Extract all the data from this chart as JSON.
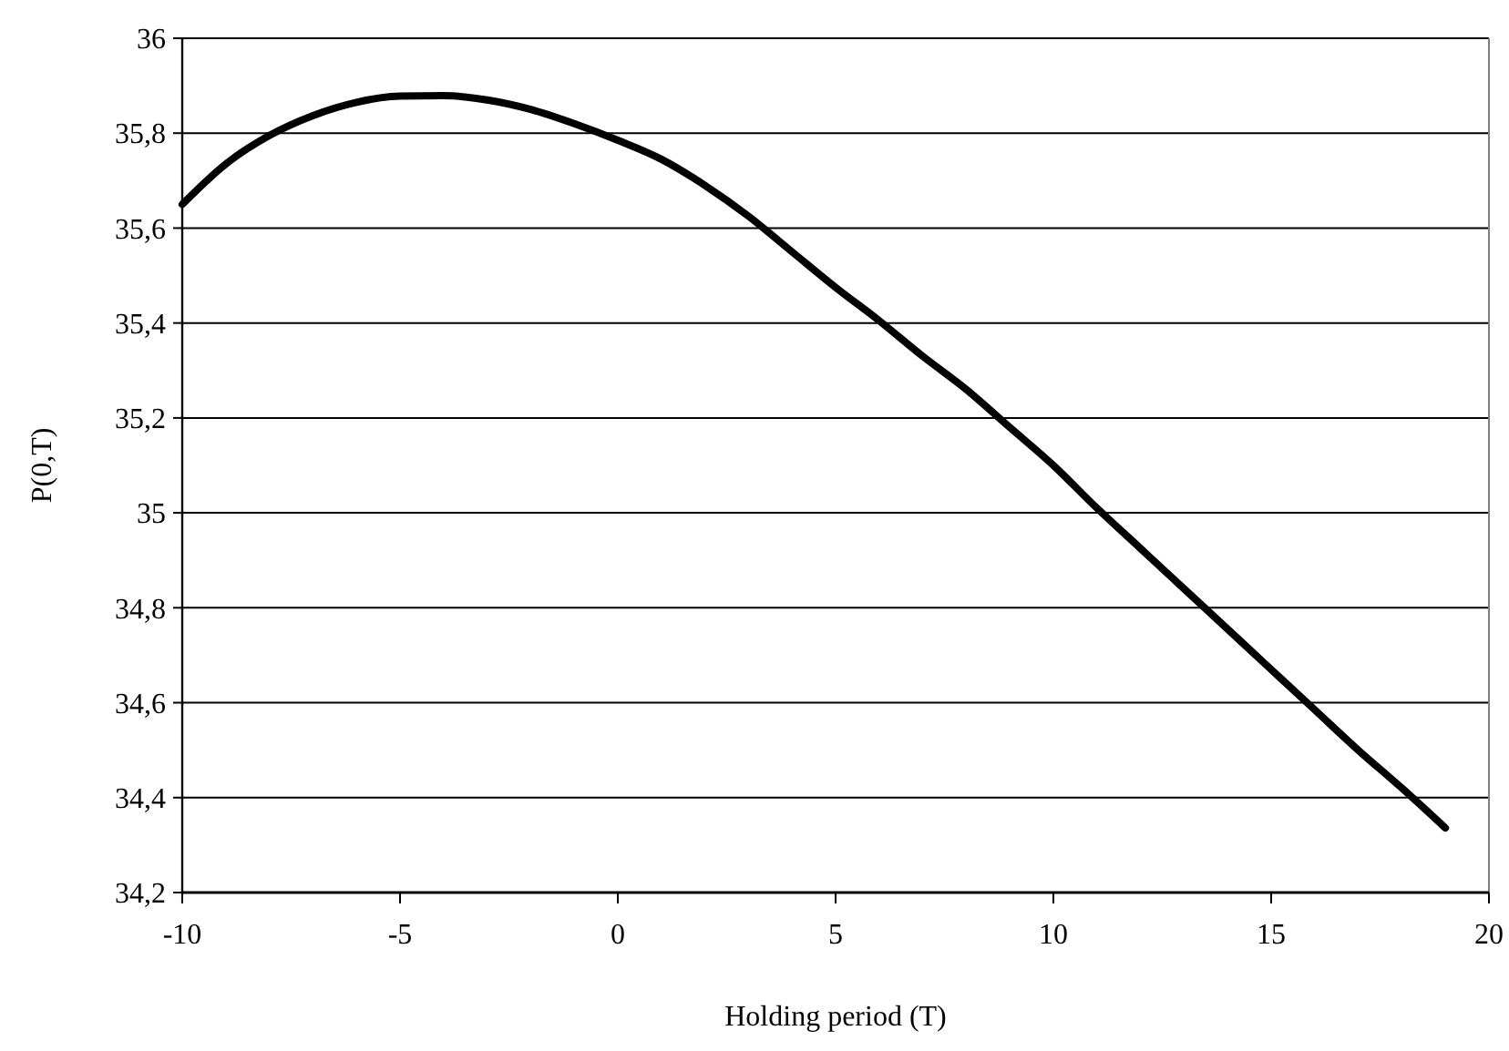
{
  "chart_data": {
    "type": "line",
    "xlabel": "Holding period (T)",
    "ylabel": "P(0,T)",
    "x": [
      -10,
      -9,
      -8,
      -7,
      -6,
      -5,
      -4,
      -3,
      -2,
      -1,
      0,
      1,
      2,
      3,
      4,
      5,
      6,
      7,
      8,
      9,
      10,
      11,
      12,
      13,
      14,
      15,
      16,
      17,
      18,
      19
    ],
    "series": [
      {
        "color": "#000000",
        "values": [
          35.65,
          35.735,
          35.795,
          35.837,
          35.865,
          35.878,
          35.879,
          35.87,
          35.85,
          35.82,
          35.785,
          35.745,
          35.69,
          35.625,
          35.55,
          35.475,
          35.405,
          35.33,
          35.26,
          35.18,
          35.1,
          35.01,
          34.925,
          34.84,
          34.755,
          34.67,
          34.585,
          34.5,
          34.42,
          34.336
        ]
      }
    ],
    "xlim": [
      -10,
      20
    ],
    "xticks": [
      -10,
      -5,
      0,
      5,
      10,
      15,
      20
    ],
    "ylim": [
      34.2,
      36
    ],
    "yticks": [
      {
        "value": 34.2,
        "label": "34,2"
      },
      {
        "value": 34.4,
        "label": "34,4"
      },
      {
        "value": 34.6,
        "label": "34,6"
      },
      {
        "value": 34.8,
        "label": "34,8"
      },
      35,
      {
        "value": 35.2,
        "label": "35,2"
      },
      {
        "value": 35.4,
        "label": "35,4"
      },
      {
        "value": 35.6,
        "label": "35,6"
      },
      {
        "value": 35.8,
        "label": "35,8"
      },
      36
    ],
    "grid": "y",
    "marker": "none",
    "line_style": "solid"
  }
}
